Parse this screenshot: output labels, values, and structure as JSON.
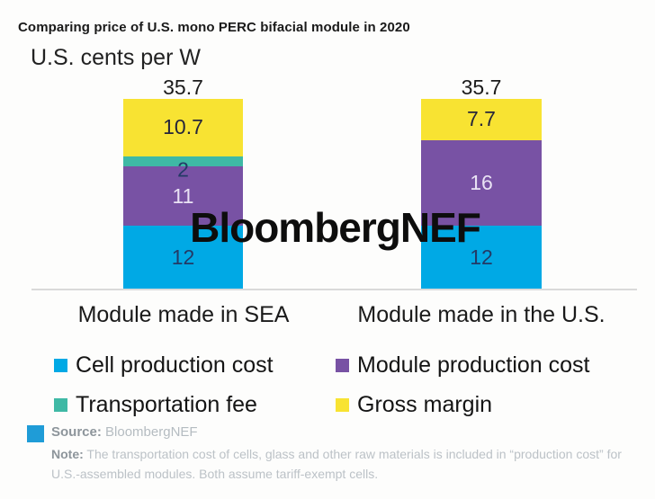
{
  "watermark": "BloombergNEF",
  "chart_data": {
    "type": "bar",
    "stacked": true,
    "title": "Comparing price of U.S. mono PERC bifacial module in 2020",
    "ylabel": "U.S. cents per W",
    "xlabel": "",
    "ylim": [
      0,
      35.7
    ],
    "grid": false,
    "legend_position": "bottom",
    "categories": [
      "Module made in SEA",
      "Module made in the U.S."
    ],
    "series": [
      {
        "name": "Cell production cost",
        "color": "#00a9e5",
        "label_color": "#233a66",
        "values": [
          12,
          12
        ]
      },
      {
        "name": "Module production cost",
        "color": "#7852a4",
        "label_color": "#e9e2f4",
        "values": [
          11,
          16
        ]
      },
      {
        "name": "Transportation fee",
        "color": "#3fb9a5",
        "label_color": "#233a66",
        "values": [
          2,
          0
        ]
      },
      {
        "name": "Gross margin",
        "color": "#f8e332",
        "label_color": "#26263a",
        "values": [
          10.7,
          7.7
        ]
      }
    ],
    "totals": [
      "35.7",
      "35.7"
    ]
  },
  "footer": {
    "source_label": "Source:",
    "source_value": "BloombergNEF",
    "note_label": "Note:",
    "note_text": "The transportation cost of cells, glass and other raw materials is included in “production cost” for U.S.-assembled modules. Both assume tariff-exempt cells.",
    "marker_color": "#1f9cd7"
  }
}
